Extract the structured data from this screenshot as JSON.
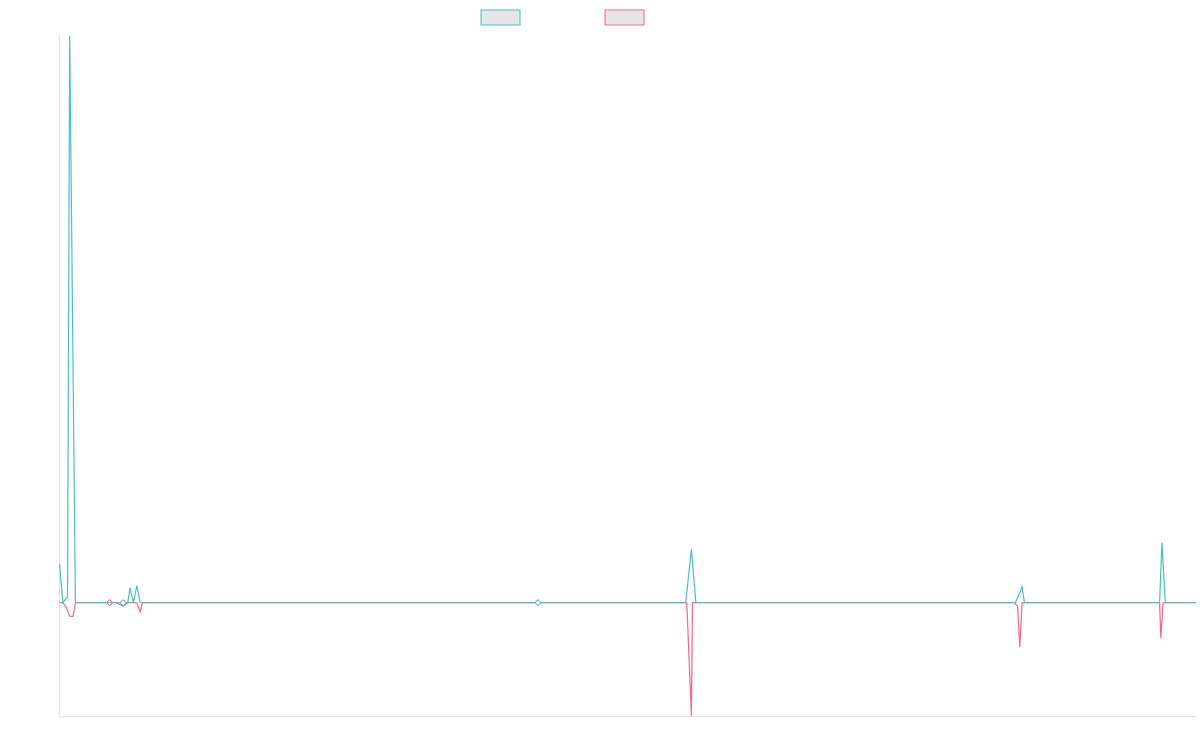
{
  "chart_data": {
    "type": "line",
    "title": "",
    "xlabel": "",
    "ylabel": "",
    "grid": false,
    "legend_position": "top-center",
    "ylim": [
      -1.0,
      5.0
    ],
    "xlim": [
      0,
      1000
    ],
    "series": [
      {
        "color": "#4bc0c0",
        "legend_fill": "#e6e6e6",
        "points": [
          [
            0,
            0.34
          ],
          [
            3,
            0.0
          ],
          [
            7,
            0.05
          ],
          [
            9,
            5.0
          ],
          [
            14,
            0.0
          ],
          [
            50,
            0.0
          ],
          [
            56,
            0.0
          ],
          [
            60,
            0.0
          ],
          [
            62,
            0.13
          ],
          [
            65,
            0.0
          ],
          [
            68,
            0.15
          ],
          [
            71,
            0.0
          ],
          [
            421,
            0.0
          ],
          [
            551,
            0.0
          ],
          [
            556,
            0.47
          ],
          [
            560,
            0.0
          ],
          [
            841,
            0.0
          ],
          [
            845,
            0.09
          ],
          [
            847,
            0.14
          ],
          [
            849,
            0.0
          ],
          [
            968,
            0.0
          ],
          [
            970,
            0.53
          ],
          [
            973,
            0.0
          ],
          [
            1000,
            0.0
          ]
        ],
        "markers": [
          [
            56,
            0.0
          ],
          [
            421,
            0.0
          ]
        ]
      },
      {
        "color": "#ff6384",
        "legend_fill": "#e6e6e6",
        "points": [
          [
            0,
            0.0
          ],
          [
            3,
            0.0
          ],
          [
            6,
            -0.04
          ],
          [
            9,
            -0.12
          ],
          [
            12,
            -0.12
          ],
          [
            14,
            0.0
          ],
          [
            44,
            0.0
          ],
          [
            50,
            0.0
          ],
          [
            56,
            -0.03
          ],
          [
            60,
            0.0
          ],
          [
            68,
            0.0
          ],
          [
            71,
            -0.08
          ],
          [
            73,
            0.0
          ],
          [
            421,
            0.0
          ],
          [
            552,
            0.0
          ],
          [
            556,
            -1.0
          ],
          [
            557,
            0.0
          ],
          [
            840,
            0.0
          ],
          [
            843,
            -0.03
          ],
          [
            845,
            -0.39
          ],
          [
            847,
            0.0
          ],
          [
            968,
            0.0
          ],
          [
            969,
            -0.31
          ],
          [
            971,
            0.0
          ],
          [
            1000,
            0.0
          ]
        ],
        "markers": [
          [
            44,
            0.0
          ]
        ]
      }
    ]
  }
}
